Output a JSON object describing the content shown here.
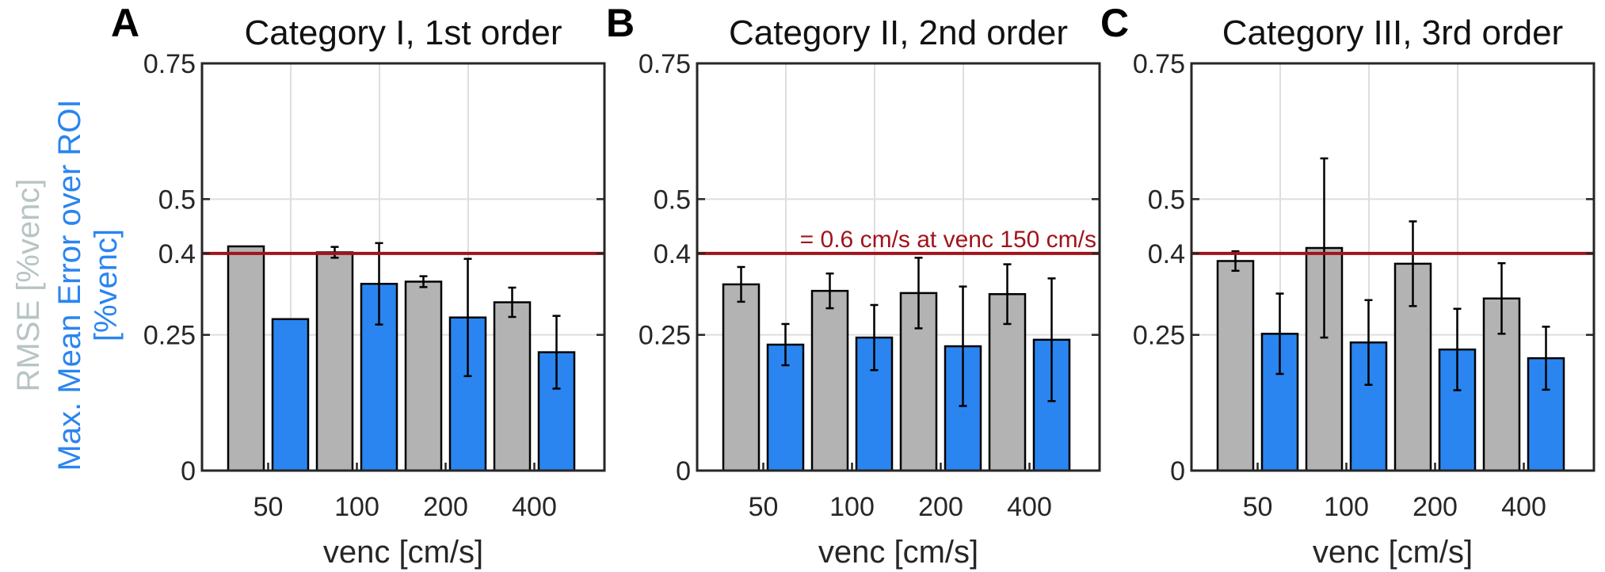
{
  "colors": {
    "rmse": "#b3b3b3",
    "mean_error": "#2a85f0",
    "threshold": "#a0141c",
    "rmse_label": "#b8c4c4",
    "mean_error_label": "#2a85f0"
  },
  "ylabel": {
    "rmse": "RMSE [%venc]",
    "mean_error_line1": "Max. Mean Error over ROI",
    "mean_error_line2": "[%venc]"
  },
  "threshold": {
    "value": 0.4,
    "label": "= 0.6 cm/s at venc 150 cm/s"
  },
  "chart_data": [
    {
      "letter": "A",
      "type": "bar",
      "title": "Category I, 1st order",
      "xlabel": "venc [cm/s]",
      "ylabel": "RMSE [%venc] / Max. Mean Error over ROI [%venc]",
      "categories": [
        "50",
        "100",
        "200",
        "400"
      ],
      "ylim": [
        0,
        0.75
      ],
      "yticks": [
        0,
        0.25,
        0.4,
        0.5,
        0.75
      ],
      "ytick_labels": [
        "0",
        "0.25",
        "0.4",
        "0.5",
        "0.75"
      ],
      "grid": true,
      "series": [
        {
          "name": "RMSE",
          "values": [
            0.413,
            0.402,
            0.348,
            0.31
          ],
          "errors": [
            null,
            0.01,
            0.01,
            0.027
          ]
        },
        {
          "name": "Max. Mean Error over ROI",
          "values": [
            0.279,
            0.344,
            0.282,
            0.218
          ],
          "errors": [
            null,
            0.075,
            0.108,
            0.067
          ]
        }
      ]
    },
    {
      "letter": "B",
      "type": "bar",
      "title": "Category II, 2nd order",
      "xlabel": "venc [cm/s]",
      "ylabel": "",
      "categories": [
        "50",
        "100",
        "200",
        "400"
      ],
      "ylim": [
        0,
        0.75
      ],
      "yticks": [
        0,
        0.25,
        0.4,
        0.5,
        0.75
      ],
      "ytick_labels": [
        "0",
        "0.25",
        "0.4",
        "0.5",
        "0.75"
      ],
      "grid": true,
      "threshold_label_shown": true,
      "series": [
        {
          "name": "RMSE",
          "values": [
            0.343,
            0.331,
            0.327,
            0.325
          ],
          "errors": [
            0.032,
            0.032,
            0.065,
            0.055
          ]
        },
        {
          "name": "Max. Mean Error over ROI",
          "values": [
            0.232,
            0.245,
            0.229,
            0.241
          ],
          "errors": [
            0.038,
            0.06,
            0.11,
            0.113
          ]
        }
      ]
    },
    {
      "letter": "C",
      "type": "bar",
      "title": "Category III, 3rd order",
      "xlabel": "venc [cm/s]",
      "ylabel": "",
      "categories": [
        "50",
        "100",
        "200",
        "400"
      ],
      "ylim": [
        0,
        0.75
      ],
      "yticks": [
        0,
        0.25,
        0.4,
        0.5,
        0.75
      ],
      "ytick_labels": [
        "0",
        "0.25",
        "0.4",
        "0.5",
        "0.75"
      ],
      "grid": true,
      "series": [
        {
          "name": "RMSE",
          "values": [
            0.386,
            0.41,
            0.381,
            0.317
          ],
          "errors": [
            0.018,
            0.165,
            0.078,
            0.065
          ]
        },
        {
          "name": "Max. Mean Error over ROI",
          "values": [
            0.252,
            0.236,
            0.223,
            0.207
          ],
          "errors": [
            0.074,
            0.078,
            0.075,
            0.058
          ]
        }
      ]
    }
  ]
}
